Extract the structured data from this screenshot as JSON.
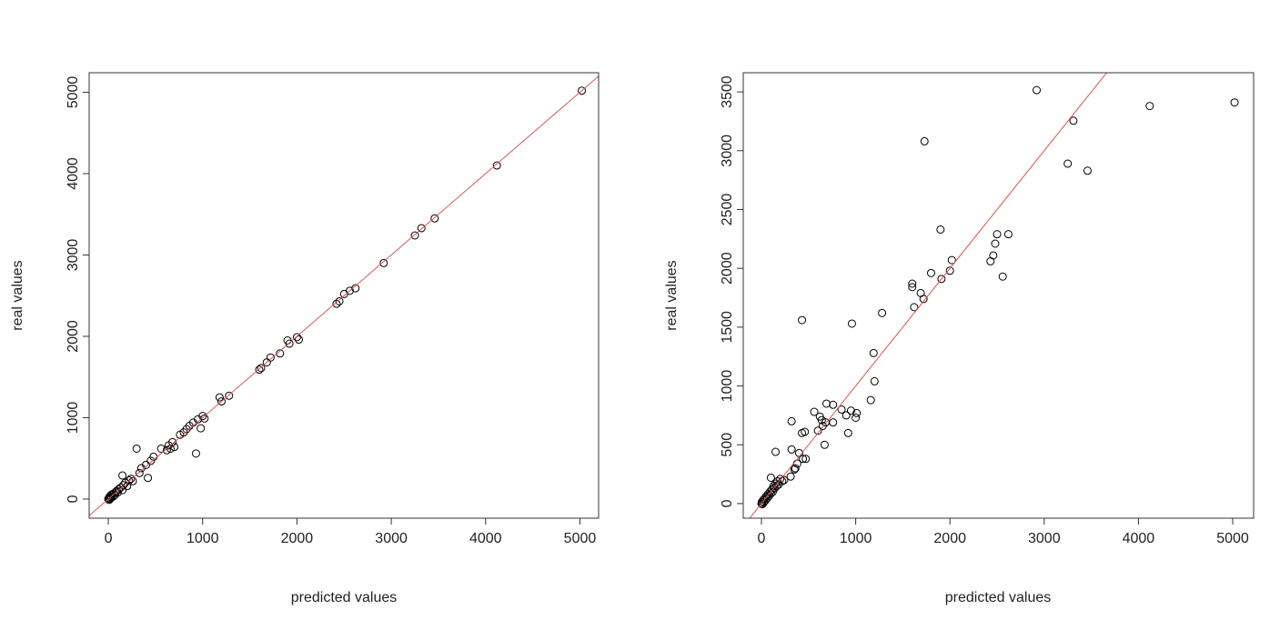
{
  "chart_data": [
    {
      "type": "scatter",
      "title": "",
      "xlabel": "predicted values",
      "ylabel": "real values",
      "xlim": [
        -203,
        5198
      ],
      "ylim": [
        -235,
        5240
      ],
      "xticks": [
        0,
        1000,
        2000,
        3000,
        4000,
        5000
      ],
      "yticks": [
        0,
        1000,
        2000,
        3000,
        4000,
        5000
      ],
      "reference_line": {
        "intercept": 0,
        "slope": 1,
        "color": "#d9534f"
      },
      "points": [
        [
          0,
          0
        ],
        [
          5,
          10
        ],
        [
          10,
          -10
        ],
        [
          15,
          30
        ],
        [
          20,
          5
        ],
        [
          25,
          45
        ],
        [
          30,
          20
        ],
        [
          40,
          60
        ],
        [
          50,
          30
        ],
        [
          60,
          70
        ],
        [
          70,
          50
        ],
        [
          80,
          90
        ],
        [
          90,
          100
        ],
        [
          100,
          80
        ],
        [
          110,
          120
        ],
        [
          130,
          140
        ],
        [
          150,
          110
        ],
        [
          160,
          170
        ],
        [
          180,
          200
        ],
        [
          200,
          160
        ],
        [
          220,
          230
        ],
        [
          240,
          250
        ],
        [
          260,
          220
        ],
        [
          150,
          290
        ],
        [
          300,
          620
        ],
        [
          330,
          320
        ],
        [
          350,
          380
        ],
        [
          400,
          420
        ],
        [
          420,
          260
        ],
        [
          450,
          470
        ],
        [
          480,
          520
        ],
        [
          560,
          620
        ],
        [
          620,
          600
        ],
        [
          640,
          660
        ],
        [
          660,
          620
        ],
        [
          680,
          700
        ],
        [
          700,
          640
        ],
        [
          760,
          790
        ],
        [
          800,
          820
        ],
        [
          830,
          860
        ],
        [
          860,
          900
        ],
        [
          900,
          940
        ],
        [
          930,
          560
        ],
        [
          950,
          980
        ],
        [
          980,
          870
        ],
        [
          1000,
          1020
        ],
        [
          1020,
          990
        ],
        [
          1180,
          1250
        ],
        [
          1200,
          1200
        ],
        [
          1280,
          1270
        ],
        [
          1600,
          1590
        ],
        [
          1620,
          1610
        ],
        [
          1680,
          1680
        ],
        [
          1720,
          1740
        ],
        [
          1820,
          1790
        ],
        [
          1900,
          1950
        ],
        [
          1920,
          1910
        ],
        [
          2000,
          1990
        ],
        [
          2020,
          1960
        ],
        [
          2420,
          2400
        ],
        [
          2450,
          2430
        ],
        [
          2500,
          2520
        ],
        [
          2560,
          2560
        ],
        [
          2620,
          2590
        ],
        [
          2920,
          2900
        ],
        [
          3250,
          3240
        ],
        [
          3320,
          3330
        ],
        [
          3460,
          3450
        ],
        [
          4120,
          4100
        ],
        [
          5020,
          5020
        ]
      ]
    },
    {
      "type": "scatter",
      "title": "",
      "xlabel": "predicted values",
      "ylabel": "real values",
      "xlim": [
        -193,
        5222
      ],
      "ylim": [
        -124,
        3663
      ],
      "xticks": [
        0,
        1000,
        2000,
        3000,
        4000,
        5000
      ],
      "yticks": [
        0,
        500,
        1000,
        1500,
        2000,
        2500,
        3000,
        3500
      ],
      "reference_line": {
        "intercept": 0,
        "slope": 1,
        "color": "#d9534f"
      },
      "points": [
        [
          0,
          0
        ],
        [
          5,
          15
        ],
        [
          10,
          -5
        ],
        [
          20,
          30
        ],
        [
          25,
          10
        ],
        [
          30,
          40
        ],
        [
          40,
          25
        ],
        [
          50,
          60
        ],
        [
          60,
          45
        ],
        [
          70,
          80
        ],
        [
          80,
          65
        ],
        [
          90,
          100
        ],
        [
          100,
          85
        ],
        [
          110,
          120
        ],
        [
          120,
          100
        ],
        [
          130,
          150
        ],
        [
          140,
          130
        ],
        [
          150,
          170
        ],
        [
          160,
          150
        ],
        [
          170,
          190
        ],
        [
          180,
          160
        ],
        [
          200,
          210
        ],
        [
          220,
          190
        ],
        [
          240,
          200
        ],
        [
          100,
          220
        ],
        [
          150,
          440
        ],
        [
          310,
          230
        ],
        [
          350,
          290
        ],
        [
          360,
          300
        ],
        [
          380,
          340
        ],
        [
          400,
          430
        ],
        [
          440,
          380
        ],
        [
          470,
          380
        ],
        [
          320,
          460
        ],
        [
          320,
          700
        ],
        [
          430,
          600
        ],
        [
          460,
          610
        ],
        [
          600,
          620
        ],
        [
          620,
          740
        ],
        [
          640,
          710
        ],
        [
          650,
          660
        ],
        [
          670,
          500
        ],
        [
          680,
          690
        ],
        [
          690,
          850
        ],
        [
          760,
          690
        ],
        [
          760,
          840
        ],
        [
          850,
          800
        ],
        [
          900,
          750
        ],
        [
          920,
          600
        ],
        [
          950,
          790
        ],
        [
          1000,
          730
        ],
        [
          1010,
          770
        ],
        [
          560,
          780
        ],
        [
          1160,
          880
        ],
        [
          1190,
          1280
        ],
        [
          1200,
          1040
        ],
        [
          430,
          1560
        ],
        [
          960,
          1530
        ],
        [
          1280,
          1620
        ],
        [
          1600,
          1870
        ],
        [
          1600,
          1840
        ],
        [
          1620,
          1670
        ],
        [
          1690,
          1790
        ],
        [
          1720,
          1740
        ],
        [
          1800,
          1960
        ],
        [
          1900,
          2330
        ],
        [
          1910,
          1910
        ],
        [
          2000,
          1980
        ],
        [
          2020,
          2070
        ],
        [
          2430,
          2060
        ],
        [
          2460,
          2110
        ],
        [
          2480,
          2210
        ],
        [
          2500,
          2290
        ],
        [
          2560,
          1930
        ],
        [
          2620,
          2290
        ],
        [
          1730,
          3080
        ],
        [
          2920,
          3515
        ],
        [
          3250,
          2890
        ],
        [
          3310,
          3255
        ],
        [
          3460,
          2830
        ],
        [
          4120,
          3380
        ],
        [
          5020,
          3410
        ]
      ]
    }
  ]
}
